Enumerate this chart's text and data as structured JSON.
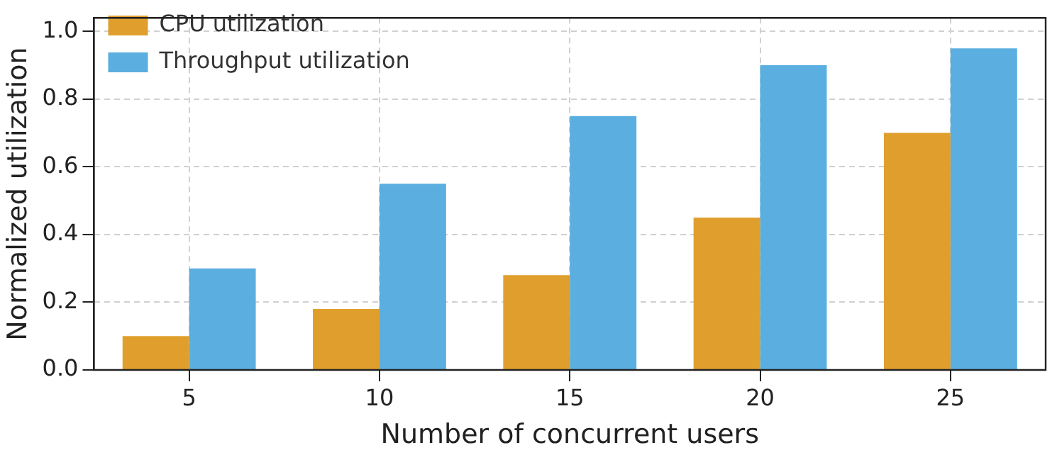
{
  "chart_data": {
    "type": "bar",
    "xlabel": "Number of concurrent users",
    "ylabel": "Normalized utilization",
    "categories": [
      "5",
      "10",
      "15",
      "20",
      "25"
    ],
    "series": [
      {
        "name": "CPU utilization",
        "color": "#e09f2d",
        "values": [
          0.1,
          0.18,
          0.28,
          0.45,
          0.7
        ]
      },
      {
        "name": "Throughput utilization",
        "color": "#5aaee0",
        "values": [
          0.3,
          0.55,
          0.75,
          0.9,
          0.95
        ]
      }
    ],
    "ylim": [
      0,
      1.04
    ],
    "yticks": [
      {
        "value": 0,
        "label": "0.0"
      },
      {
        "value": 0.2,
        "label": "0.2"
      },
      {
        "value": 0.4,
        "label": "0.4"
      },
      {
        "value": 0.6,
        "label": "0.6"
      },
      {
        "value": 0.8,
        "label": "0.8"
      },
      {
        "value": 1.0,
        "label": "1.0"
      }
    ],
    "grid": true,
    "legend": "top left"
  }
}
